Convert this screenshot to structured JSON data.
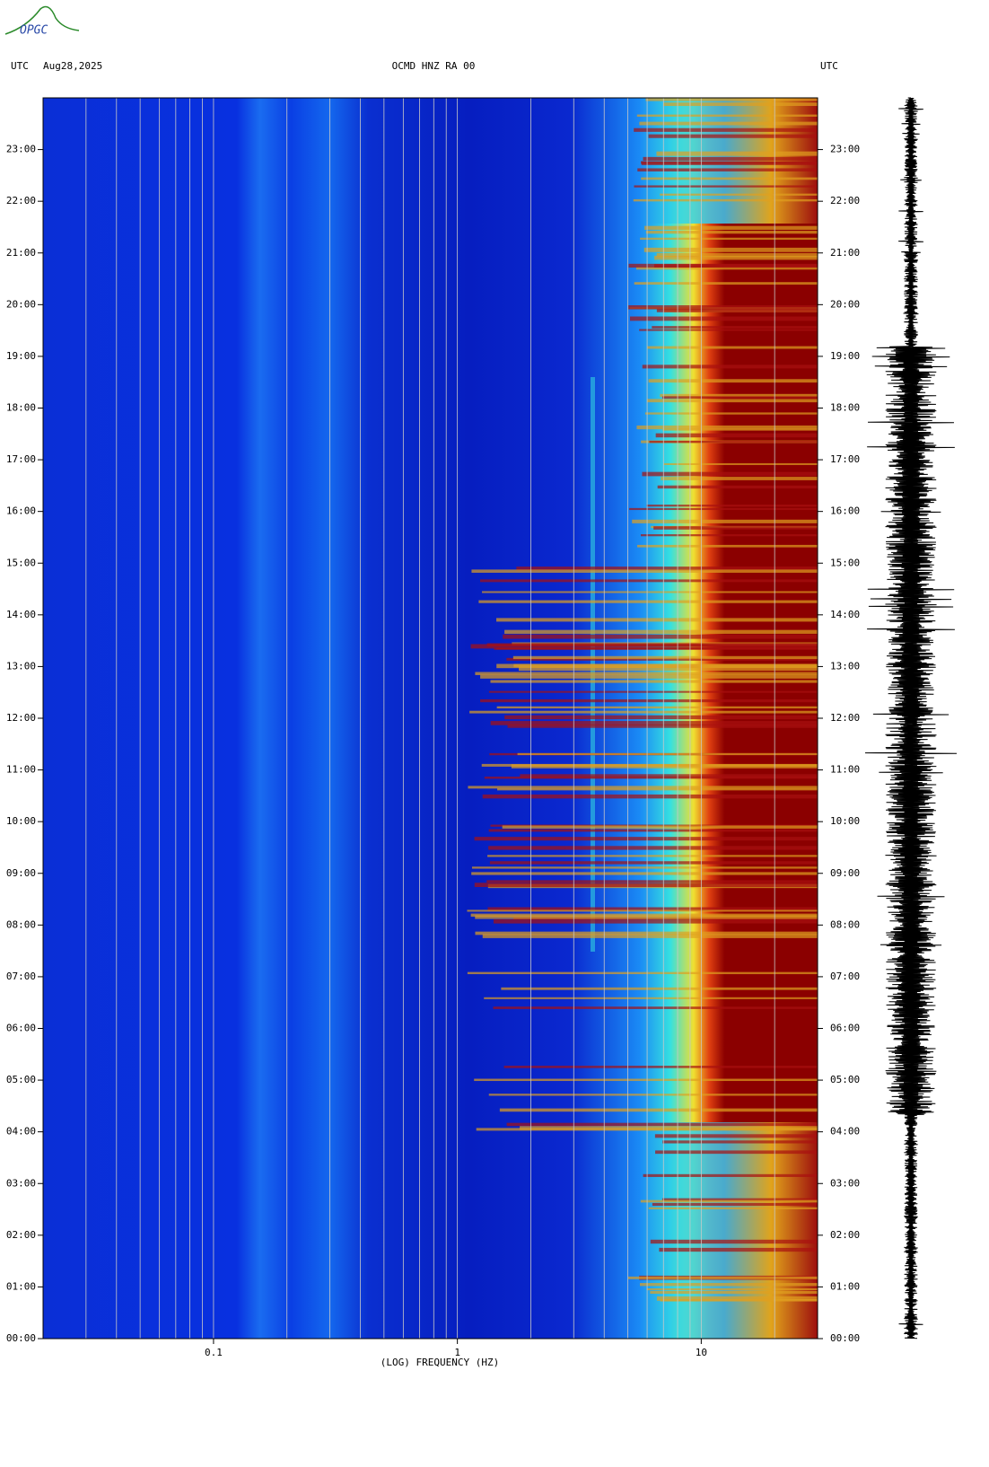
{
  "logo": "OPGC",
  "chart_data": {
    "type": "spectrogram",
    "title": "OCMD HNZ RA 00",
    "date_label": "Aug28,2025",
    "left_time_label": "UTC",
    "right_time_label": "UTC",
    "x_label": "(LOG) FREQUENCY (HZ)",
    "xscale": "log",
    "xlim": [
      0.02,
      30
    ],
    "xticks": [
      0.1,
      1,
      10
    ],
    "xgrid": [
      0.03,
      0.04,
      0.05,
      0.06,
      0.07,
      0.08,
      0.09,
      0.1,
      0.2,
      0.3,
      0.4,
      0.5,
      0.6,
      0.7,
      0.8,
      0.9,
      1,
      2,
      3,
      4,
      5,
      6,
      7,
      8,
      9,
      10,
      20
    ],
    "ylim": [
      0,
      24
    ],
    "yticks": [
      {
        "value": 0,
        "label": "00:00"
      },
      {
        "value": 1,
        "label": "01:00"
      },
      {
        "value": 2,
        "label": "02:00"
      },
      {
        "value": 3,
        "label": "03:00"
      },
      {
        "value": 4,
        "label": "04:00"
      },
      {
        "value": 5,
        "label": "05:00"
      },
      {
        "value": 6,
        "label": "06:00"
      },
      {
        "value": 7,
        "label": "07:00"
      },
      {
        "value": 8,
        "label": "08:00"
      },
      {
        "value": 9,
        "label": "09:00"
      },
      {
        "value": 10,
        "label": "10:00"
      },
      {
        "value": 11,
        "label": "11:00"
      },
      {
        "value": 12,
        "label": "12:00"
      },
      {
        "value": 13,
        "label": "13:00"
      },
      {
        "value": 14,
        "label": "14:00"
      },
      {
        "value": 15,
        "label": "15:00"
      },
      {
        "value": 16,
        "label": "16:00"
      },
      {
        "value": 17,
        "label": "17:00"
      },
      {
        "value": 18,
        "label": "18:00"
      },
      {
        "value": 19,
        "label": "19:00"
      },
      {
        "value": 20,
        "label": "20:00"
      },
      {
        "value": 21,
        "label": "21:00"
      },
      {
        "value": 22,
        "label": "22:00"
      },
      {
        "value": 23,
        "label": "23:00"
      }
    ]
  }
}
